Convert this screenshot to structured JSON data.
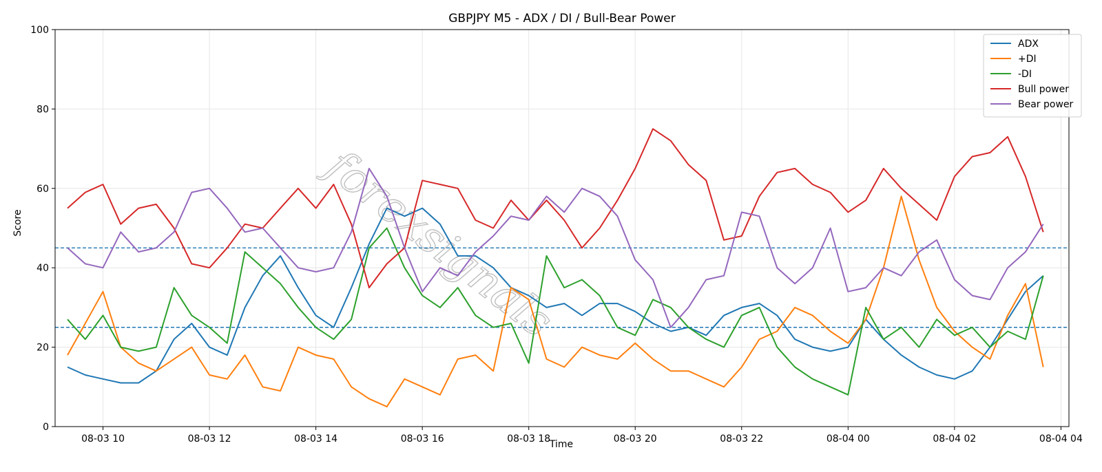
{
  "chart_data": {
    "type": "line",
    "title": "GBPJPY M5 - ADX / DI / Bull-Bear Power",
    "xlabel": "Time",
    "ylabel": "Score",
    "ylim": [
      0,
      100
    ],
    "yticks": [
      0,
      20,
      40,
      60,
      80,
      100
    ],
    "xlim": [
      "08-03 09:06",
      "08-04 04:09"
    ],
    "xticks": [
      "08-03 10",
      "08-03 12",
      "08-03 14",
      "08-03 16",
      "08-03 18",
      "08-03 20",
      "08-03 22",
      "08-04 00",
      "08-04 02",
      "08-04 04"
    ],
    "grid": true,
    "legend_position": "top-right",
    "watermark": "forexsignals",
    "reference_lines": [
      {
        "y": 45,
        "style": "dashed",
        "color": "#1f77b4"
      },
      {
        "y": 25,
        "style": "dashed",
        "color": "#1f77b4"
      }
    ],
    "x": [
      "08-03 09:20",
      "08-03 09:40",
      "08-03 10:00",
      "08-03 10:20",
      "08-03 10:40",
      "08-03 11:00",
      "08-03 11:20",
      "08-03 11:40",
      "08-03 12:00",
      "08-03 12:20",
      "08-03 12:40",
      "08-03 13:00",
      "08-03 13:20",
      "08-03 13:40",
      "08-03 14:00",
      "08-03 14:20",
      "08-03 14:40",
      "08-03 15:00",
      "08-03 15:20",
      "08-03 15:40",
      "08-03 16:00",
      "08-03 16:20",
      "08-03 16:40",
      "08-03 17:00",
      "08-03 17:20",
      "08-03 17:40",
      "08-03 18:00",
      "08-03 18:20",
      "08-03 18:40",
      "08-03 19:00",
      "08-03 19:20",
      "08-03 19:40",
      "08-03 20:00",
      "08-03 20:20",
      "08-03 20:40",
      "08-03 21:00",
      "08-03 21:20",
      "08-03 21:40",
      "08-03 22:00",
      "08-03 22:20",
      "08-03 22:40",
      "08-03 23:00",
      "08-03 23:20",
      "08-03 23:40",
      "08-04 00:00",
      "08-04 00:20",
      "08-04 00:40",
      "08-04 01:00",
      "08-04 01:20",
      "08-04 01:40",
      "08-04 02:00",
      "08-04 02:20",
      "08-04 02:40",
      "08-04 03:00",
      "08-04 03:20",
      "08-04 03:40"
    ],
    "series": [
      {
        "name": "ADX",
        "color": "#1f77b4",
        "values": [
          15,
          13,
          12,
          11,
          11,
          14,
          22,
          26,
          20,
          18,
          30,
          38,
          43,
          35,
          28,
          25,
          35,
          46,
          55,
          53,
          55,
          51,
          43,
          43,
          40,
          35,
          33,
          30,
          31,
          28,
          31,
          31,
          29,
          26,
          24,
          25,
          23,
          28,
          30,
          31,
          28,
          22,
          20,
          19,
          20,
          27,
          22,
          18,
          15,
          13,
          12,
          14,
          20,
          27,
          34,
          38
        ]
      },
      {
        "name": "+DI",
        "color": "#ff7f0e",
        "values": [
          18,
          26,
          34,
          20,
          16,
          14,
          17,
          20,
          13,
          12,
          18,
          10,
          9,
          20,
          18,
          17,
          10,
          7,
          5,
          12,
          10,
          8,
          17,
          18,
          14,
          35,
          32,
          17,
          15,
          20,
          18,
          17,
          21,
          17,
          14,
          14,
          12,
          10,
          15,
          22,
          24,
          30,
          28,
          24,
          21,
          27,
          40,
          58,
          42,
          30,
          24,
          20,
          17,
          28,
          36,
          15
        ]
      },
      {
        "name": "-DI",
        "color": "#2ca02c",
        "values": [
          27,
          22,
          28,
          20,
          19,
          20,
          35,
          28,
          25,
          21,
          44,
          40,
          36,
          30,
          25,
          22,
          27,
          45,
          50,
          40,
          33,
          30,
          35,
          28,
          25,
          26,
          16,
          43,
          35,
          37,
          33,
          25,
          23,
          32,
          30,
          25,
          22,
          20,
          28,
          30,
          20,
          15,
          12,
          10,
          8,
          30,
          22,
          25,
          20,
          27,
          23,
          25,
          20,
          24,
          22,
          38
        ]
      },
      {
        "name": "Bull power",
        "color": "#d62728",
        "values": [
          55,
          59,
          61,
          51,
          55,
          56,
          50,
          41,
          40,
          45,
          51,
          50,
          55,
          60,
          55,
          61,
          51,
          35,
          41,
          45,
          62,
          61,
          60,
          52,
          50,
          57,
          52,
          57,
          52,
          45,
          50,
          57,
          65,
          75,
          72,
          66,
          62,
          47,
          48,
          58,
          64,
          65,
          61,
          59,
          54,
          57,
          65,
          60,
          56,
          52,
          63,
          68,
          69,
          73,
          63,
          49
        ]
      },
      {
        "name": "Bear power",
        "color": "#9467bd",
        "values": [
          45,
          41,
          40,
          49,
          44,
          45,
          49,
          59,
          60,
          55,
          49,
          50,
          45,
          40,
          39,
          40,
          49,
          65,
          58,
          45,
          34,
          40,
          38,
          44,
          48,
          53,
          52,
          58,
          54,
          60,
          58,
          53,
          42,
          37,
          25,
          30,
          37,
          38,
          54,
          53,
          40,
          36,
          40,
          50,
          34,
          35,
          40,
          38,
          44,
          47,
          37,
          33,
          32,
          40,
          44,
          51
        ]
      }
    ]
  }
}
